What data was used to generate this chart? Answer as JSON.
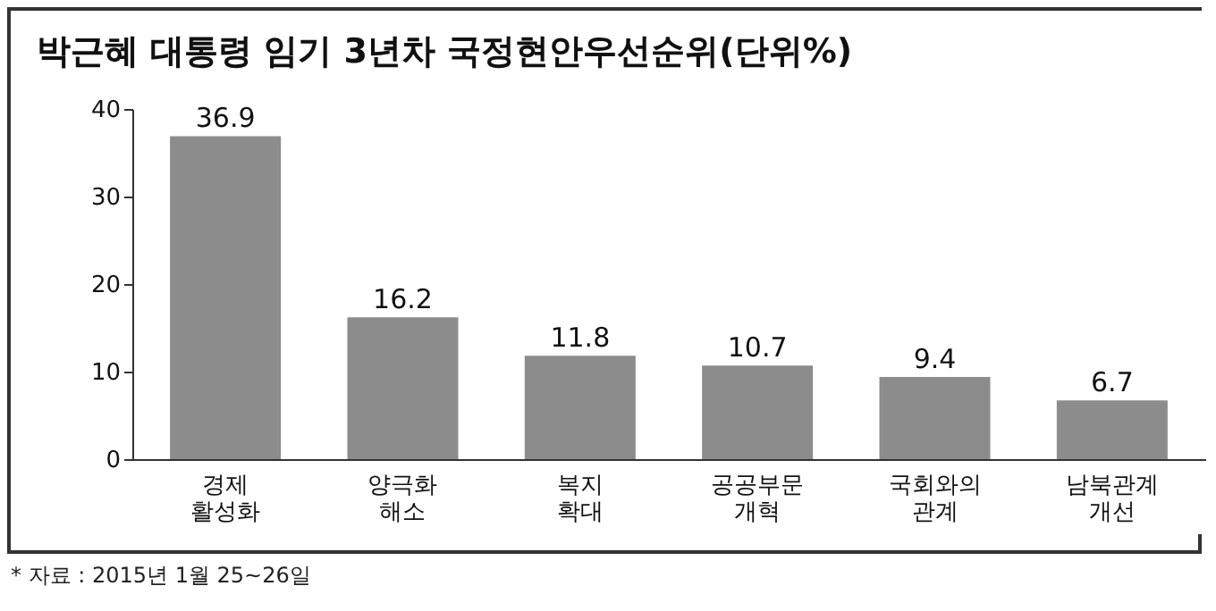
{
  "chart_data": {
    "type": "bar",
    "title": "박근혜 대통령 임기 3년차 국정현안우선순위(단위%)",
    "categories": [
      "경제 활성화",
      "양극화 해소",
      "복지 확대",
      "공공부문 개혁",
      "국회와의 관계",
      "남북관계 개선"
    ],
    "values": [
      36.9,
      16.2,
      11.8,
      10.7,
      9.4,
      6.7
    ],
    "color": "#8c8c8c",
    "ylim": [
      0,
      40
    ],
    "yticks": [
      0,
      10,
      20,
      30,
      40
    ],
    "grid": false,
    "data_labels": true,
    "annotations": [
      "* 자료 : 2015년 1월 25~26일"
    ]
  }
}
